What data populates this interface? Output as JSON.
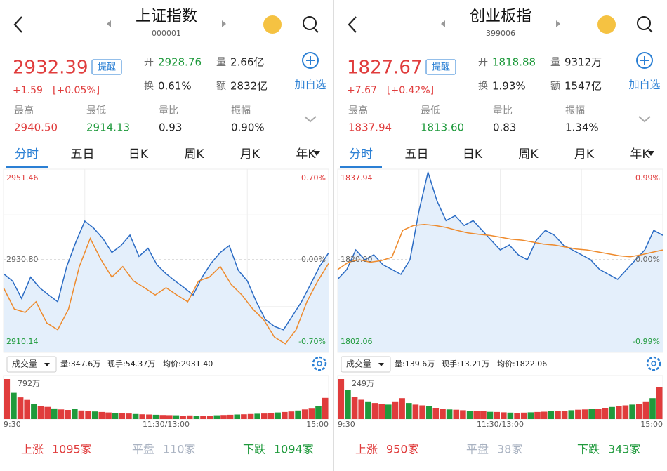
{
  "panels": [
    {
      "header": {
        "title": "上证指数",
        "code": "000001"
      },
      "quote": {
        "price": "2932.39",
        "remind": "提醒",
        "change": "+1.59",
        "change_pct": "[+0.05%]",
        "add": "加自选",
        "stats": [
          {
            "label": "开",
            "value": "2928.76"
          },
          {
            "label": "量",
            "value": "2.66亿"
          },
          {
            "label": "换",
            "value": "0.61%"
          },
          {
            "label": "额",
            "value": "2832亿"
          }
        ],
        "stats2": [
          {
            "label": "最高",
            "value": "2940.50"
          },
          {
            "label": "最低",
            "value": "2914.13"
          },
          {
            "label": "量比",
            "value": "0.93"
          },
          {
            "label": "振幅",
            "value": "0.90%"
          }
        ]
      },
      "tabs": [
        "分时",
        "五日",
        "日K",
        "周K",
        "月K",
        "年K"
      ],
      "chart": {
        "top": "2951.46",
        "mid": "2930.80",
        "bottom": "2910.14",
        "top_pct": "0.70%",
        "mid_pct": "0.00%",
        "bottom_pct": "-0.70%",
        "ylim": [
          2910.14,
          2951.46
        ],
        "price": [
          2927.5,
          2925.8,
          2921.7,
          2926.7,
          2924.2,
          2922.5,
          2920.9,
          2929.2,
          2934.9,
          2939.9,
          2938.2,
          2935.8,
          2932.5,
          2934.1,
          2936.6,
          2931.6,
          2933.5,
          2929.6,
          2927.5,
          2925.8,
          2924.2,
          2922.5,
          2926.7,
          2930.0,
          2932.5,
          2934.1,
          2928.3,
          2925.8,
          2920.9,
          2916.7,
          2915.1,
          2914.3,
          2917.6,
          2920.9,
          2925.0,
          2929.2,
          2932.4
        ],
        "average": [
          2924.2,
          2919.2,
          2918.4,
          2920.9,
          2915.9,
          2914.3,
          2919.2,
          2929.2,
          2935.8,
          2930.8,
          2926.7,
          2929.2,
          2925.8,
          2924.2,
          2922.5,
          2924.2,
          2922.5,
          2920.9,
          2925.8,
          2926.7,
          2929.2,
          2925.0,
          2922.5,
          2919.2,
          2916.7,
          2912.6,
          2911.0,
          2914.3,
          2920.9,
          2925.8,
          2929.9
        ]
      },
      "volume": {
        "select": "成交量",
        "vol": "量:347.6万",
        "hand": "现手:54.37万",
        "avg": "均价:2931.40",
        "max_label": "792万",
        "max": 792,
        "values": [
          792,
          520,
          430,
          380,
          300,
          260,
          240,
          210,
          190,
          180,
          200,
          170,
          160,
          150,
          140,
          130,
          120,
          125,
          110,
          100,
          95,
          90,
          85,
          80,
          78,
          75,
          70,
          72,
          68,
          65,
          70,
          75,
          80,
          85,
          90,
          95,
          100,
          105,
          110,
          120,
          130,
          140,
          150,
          170,
          190,
          220,
          260,
          420
        ],
        "times": [
          "9:30",
          "11:30/13:00",
          "15:00"
        ]
      },
      "footer": [
        {
          "label": "上涨",
          "value": "1095家"
        },
        {
          "label": "平盘",
          "value": "110家"
        },
        {
          "label": "下跌",
          "value": "1094家"
        }
      ]
    },
    {
      "header": {
        "title": "创业板指",
        "code": "399006"
      },
      "quote": {
        "price": "1827.67",
        "remind": "提醒",
        "change": "+7.67",
        "change_pct": "[+0.42%]",
        "add": "加自选",
        "stats": [
          {
            "label": "开",
            "value": "1818.88"
          },
          {
            "label": "量",
            "value": "9312万"
          },
          {
            "label": "换",
            "value": "1.93%"
          },
          {
            "label": "额",
            "value": "1547亿"
          }
        ],
        "stats2": [
          {
            "label": "最高",
            "value": "1837.94"
          },
          {
            "label": "最低",
            "value": "1813.60"
          },
          {
            "label": "量比",
            "value": "0.83"
          },
          {
            "label": "振幅",
            "value": "1.34%"
          }
        ]
      },
      "tabs": [
        "分时",
        "五日",
        "日K",
        "周K",
        "月K",
        "年K"
      ],
      "chart": {
        "top": "1837.94",
        "mid": "1820.00",
        "bottom": "1802.06",
        "top_pct": "0.99%",
        "mid_pct": "0.00%",
        "bottom_pct": "-0.99%",
        "ylim": [
          1802.06,
          1837.94
        ],
        "price": [
          1816,
          1818,
          1822,
          1820,
          1821,
          1819,
          1818,
          1817,
          1820,
          1830,
          1837.9,
          1832,
          1828,
          1829,
          1827,
          1828,
          1826,
          1824,
          1822,
          1823,
          1821,
          1820,
          1824,
          1826,
          1825,
          1823,
          1822,
          1821,
          1820,
          1818,
          1817,
          1816,
          1818,
          1820,
          1822,
          1826,
          1825
        ],
        "average": [
          1818,
          1819.5,
          1820,
          1819.5,
          1819.8,
          1820.5,
          1826,
          1827,
          1827.2,
          1827,
          1826.6,
          1826,
          1825.5,
          1825.2,
          1825,
          1824.6,
          1824.2,
          1824,
          1823.6,
          1823.2,
          1823,
          1822.6,
          1822.2,
          1822,
          1821.6,
          1821.2,
          1820.8,
          1820.6,
          1821,
          1821.5,
          1822
        ]
      },
      "volume": {
        "select": "成交量",
        "vol": "量:139.6万",
        "hand": "现手:13.21万",
        "avg": "均价:1822.06",
        "max_label": "249万",
        "max": 249,
        "values": [
          249,
          180,
          140,
          120,
          110,
          100,
          95,
          90,
          110,
          130,
          100,
          90,
          85,
          80,
          70,
          65,
          60,
          58,
          55,
          52,
          50,
          48,
          45,
          44,
          42,
          40,
          38,
          40,
          42,
          44,
          46,
          48,
          50,
          52,
          55,
          58,
          60,
          62,
          65,
          70,
          75,
          80,
          85,
          90,
          95,
          110,
          130,
          200
        ],
        "times": [
          "9:30",
          "11:30/13:00",
          "15:00"
        ]
      },
      "footer": [
        {
          "label": "上涨",
          "value": "950家"
        },
        {
          "label": "平盘",
          "value": "38家"
        },
        {
          "label": "下跌",
          "value": "343家"
        }
      ]
    }
  ]
}
